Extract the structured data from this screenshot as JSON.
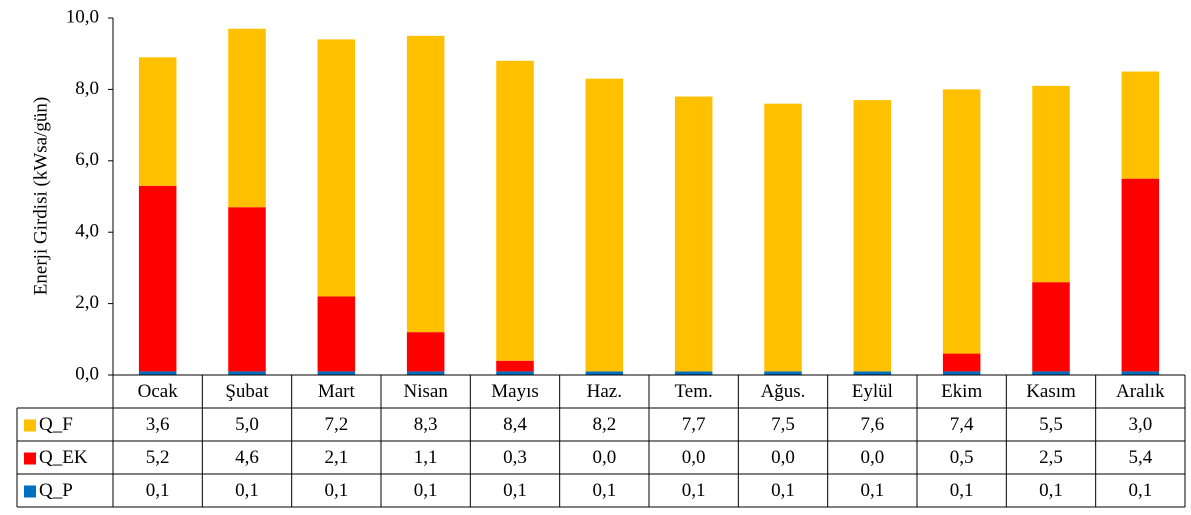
{
  "chart_data": {
    "type": "stacked_bar",
    "y_label": "Enerji Girdisi (kWsa/gün)",
    "categories": [
      "Ocak",
      "Şubat",
      "Mart",
      "Nisan",
      "Mayıs",
      "Haz.",
      "Tem.",
      "Ağus.",
      "Eylül",
      "Ekim",
      "Kasım",
      "Aralık"
    ],
    "series": [
      {
        "name": "Q_F",
        "color": "#FFC000",
        "values": [
          3.6,
          5.0,
          7.2,
          8.3,
          8.4,
          8.2,
          7.7,
          7.5,
          7.6,
          7.4,
          5.5,
          3.0
        ],
        "value_labels": [
          "3,6",
          "5,0",
          "7,2",
          "8,3",
          "8,4",
          "8,2",
          "7,7",
          "7,5",
          "7,6",
          "7,4",
          "5,5",
          "3,0"
        ]
      },
      {
        "name": "Q_EK",
        "color": "#FF0000",
        "values": [
          5.2,
          4.6,
          2.1,
          1.1,
          0.3,
          0.0,
          0.0,
          0.0,
          0.0,
          0.5,
          2.5,
          5.4
        ],
        "value_labels": [
          "5,2",
          "4,6",
          "2,1",
          "1,1",
          "0,3",
          "0,0",
          "0,0",
          "0,0",
          "0,0",
          "0,5",
          "2,5",
          "5,4"
        ]
      },
      {
        "name": "Q_P",
        "color": "#0070C0",
        "values": [
          0.1,
          0.1,
          0.1,
          0.1,
          0.1,
          0.1,
          0.1,
          0.1,
          0.1,
          0.1,
          0.1,
          0.1
        ],
        "value_labels": [
          "0,1",
          "0,1",
          "0,1",
          "0,1",
          "0,1",
          "0,1",
          "0,1",
          "0,1",
          "0,1",
          "0,1",
          "0,1",
          "0,1"
        ]
      }
    ],
    "ylim": [
      0,
      10
    ],
    "yticks": [
      {
        "value": 0,
        "label": "0,0"
      },
      {
        "value": 2,
        "label": "2,0"
      },
      {
        "value": 4,
        "label": "4,0"
      },
      {
        "value": 6,
        "label": "6,0"
      },
      {
        "value": 8,
        "label": "8,0"
      },
      {
        "value": 10,
        "label": "10,0"
      }
    ],
    "grid": false
  }
}
